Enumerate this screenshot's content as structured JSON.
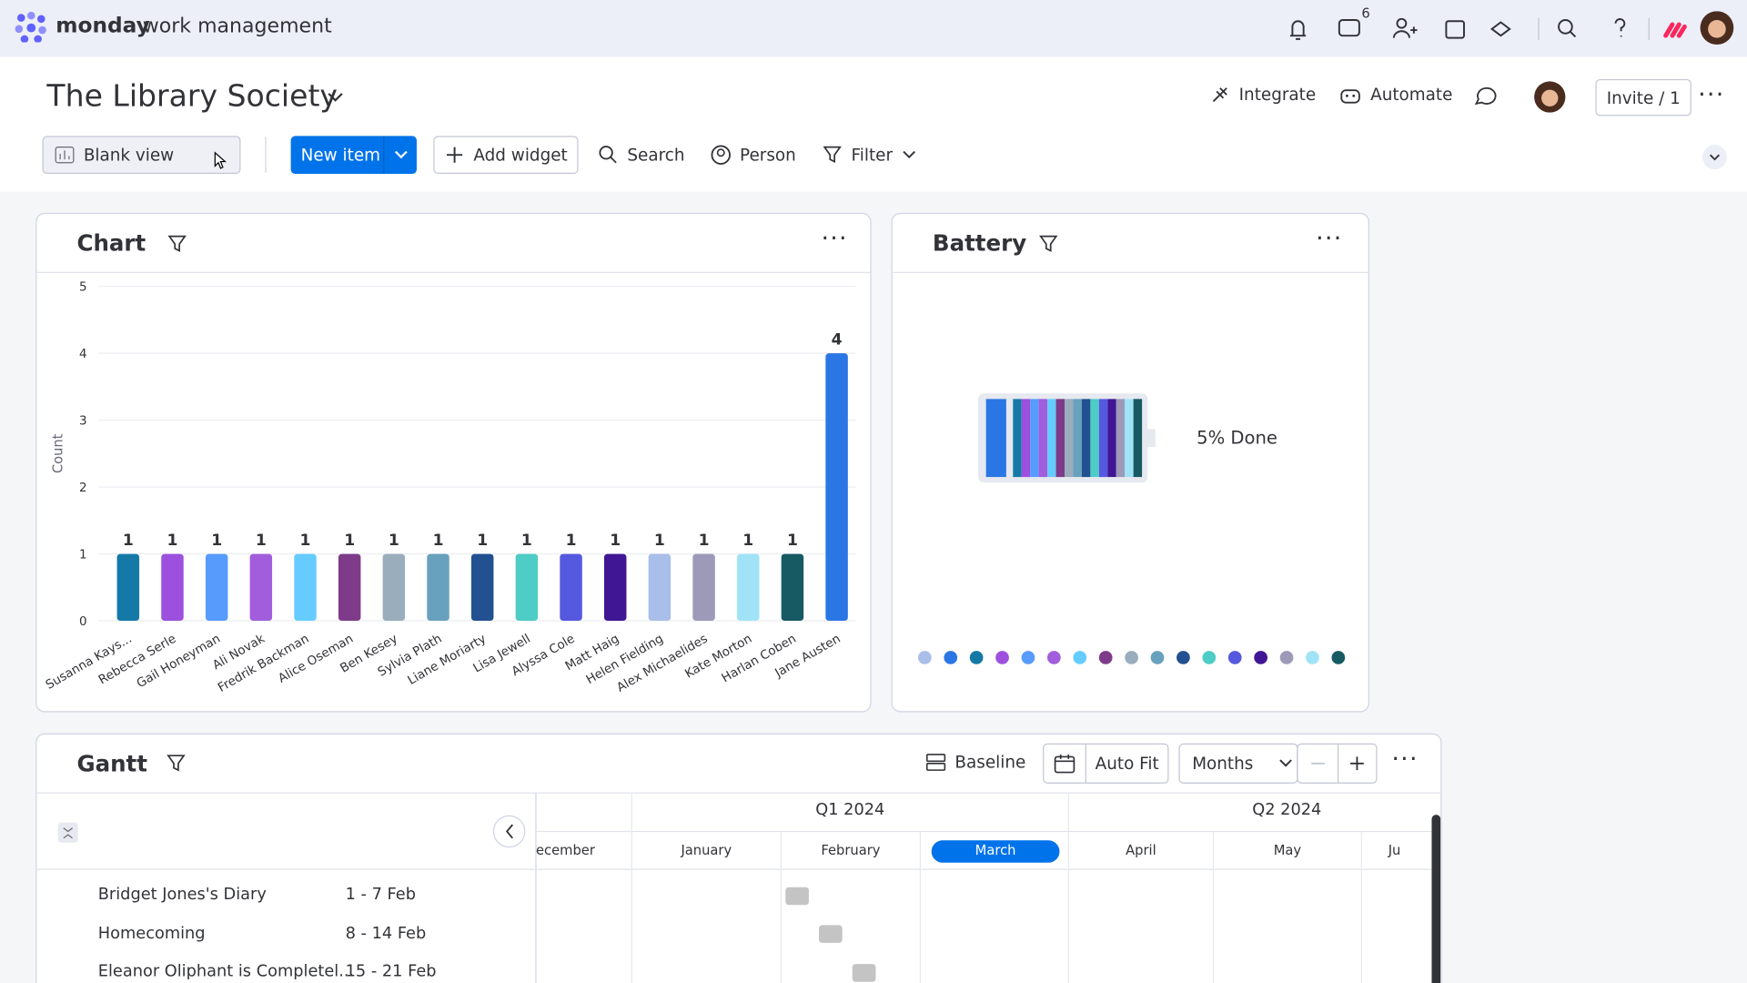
{
  "app": {
    "brand": "monday",
    "product": "work management",
    "inbox_badge": "6"
  },
  "board": {
    "title": "The Library Society",
    "integrate": "Integrate",
    "automate": "Automate",
    "invite": "Invite / 1"
  },
  "toolbar": {
    "view": "Blank view",
    "new_item": "New item",
    "add_widget": "Add widget",
    "search": "Search",
    "person": "Person",
    "filter": "Filter"
  },
  "chart_widget": {
    "title": "Chart"
  },
  "chart_data": {
    "type": "bar",
    "y_label": "Count",
    "categories": [
      "Susanna Kays...",
      "Rebecca Serle",
      "Gail Honeyman",
      "Ali Novak",
      "Fredrik Backman",
      "Alice Oseman",
      "Ben Kesey",
      "Sylvia Plath",
      "Liane Moriarty",
      "Lisa Jewell",
      "Alyssa Cole",
      "Matt Haig",
      "Helen Fielding",
      "Alex Michaelides",
      "Kate Morton",
      "Harlan Coben",
      "Jane Austen"
    ],
    "values": [
      1,
      1,
      1,
      1,
      1,
      1,
      1,
      1,
      1,
      1,
      1,
      1,
      1,
      1,
      1,
      1,
      4
    ],
    "colors": [
      "#1579a8",
      "#9d50dd",
      "#579bfc",
      "#a25ddc",
      "#66ccff",
      "#7e3b8a",
      "#9aadbd",
      "#68a1bd",
      "#225091",
      "#4eccc6",
      "#5559df",
      "#401694",
      "#a9bee8",
      "#9d99b9",
      "#a1e3f6",
      "#175a63",
      "#2b76e5"
    ],
    "ylim": [
      0,
      5
    ],
    "yticks": [
      0,
      1,
      2,
      3,
      4,
      5
    ],
    "grid": true
  },
  "battery": {
    "title": "Battery",
    "label": "5% Done",
    "colors": [
      "#a9bee8",
      "#2b76e5",
      "#1579a8",
      "#9d50dd",
      "#579bfc",
      "#a25ddc",
      "#66ccff",
      "#7e3b8a",
      "#9aadbd",
      "#68a1bd",
      "#225091",
      "#4eccc6",
      "#5559df",
      "#401694",
      "#9d99b9",
      "#a1e3f6",
      "#175a63"
    ]
  },
  "gantt": {
    "title": "Gantt",
    "baseline": "Baseline",
    "auto_fit": "Auto Fit",
    "scale": "Months",
    "quarters": [
      "Q1 2024",
      "Q2 2024"
    ],
    "months": [
      "ecember",
      "January",
      "February",
      "March",
      "April",
      "May",
      "Ju"
    ],
    "rows": [
      {
        "name": "Bridget Jones's Diary",
        "dates": "1 - 7 Feb"
      },
      {
        "name": "Homecoming",
        "dates": "8 - 14 Feb"
      },
      {
        "name": "Eleanor Oliphant is Completel...",
        "dates": "15 - 21 Feb"
      }
    ]
  }
}
